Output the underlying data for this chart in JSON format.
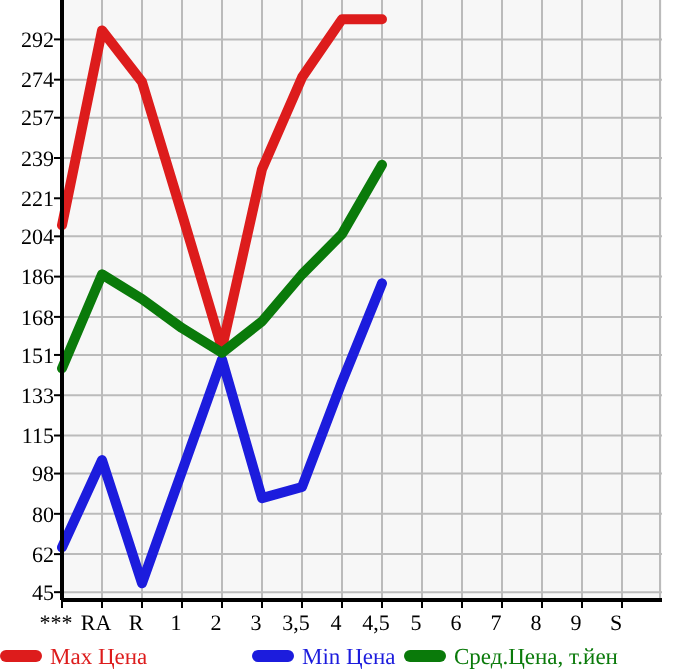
{
  "chart_data": {
    "type": "line",
    "categories": [
      "***",
      "RA",
      "R",
      "1",
      "2",
      "3",
      "3,5",
      "4",
      "4,5",
      "5",
      "6",
      "7",
      "8",
      "9",
      "S"
    ],
    "series": [
      {
        "name": "Max Цена",
        "color": "#dd1c1c",
        "values": [
          209,
          296,
          273,
          214,
          154,
          234,
          275,
          301,
          301,
          null,
          null,
          null,
          null,
          null,
          null
        ]
      },
      {
        "name": "Min Цена",
        "color": "#1c1cdd",
        "values": [
          65,
          104,
          49,
          99,
          149,
          87,
          92,
          139,
          183,
          null,
          null,
          null,
          null,
          null,
          null
        ]
      },
      {
        "name": "Сред.Цена, т.йен",
        "color": "#0a7a0a",
        "values": [
          145,
          187,
          176,
          163,
          152,
          166,
          187,
          205,
          236,
          null,
          null,
          null,
          null,
          null,
          null
        ]
      }
    ],
    "ylim": [
      41.5,
      309.6
    ],
    "yticks": [
      45,
      62,
      80,
      98,
      115,
      133,
      151,
      168,
      186,
      204,
      221,
      239,
      257,
      274,
      292
    ],
    "grid": true,
    "legend": "bottom",
    "marker": "none",
    "line_style": "solid"
  }
}
